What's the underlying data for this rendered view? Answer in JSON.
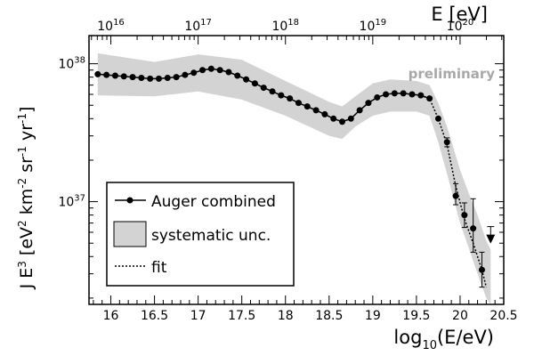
{
  "chart_data": {
    "type": "line",
    "annotation": "preliminary",
    "xlabel_bottom": {
      "base": "log",
      "sub": "10",
      "rest": "(E/eV)"
    },
    "xlabel_top": "E [eV]",
    "ylabel_parts": [
      "J E",
      "3",
      " [eV",
      "2",
      " km",
      "-2",
      " sr",
      "-1",
      " yr",
      "-1",
      "]"
    ],
    "x_range": [
      15.75,
      20.5
    ],
    "y_scale": "log",
    "y_range": [
      1.8e+36,
      1.6e+38
    ],
    "x_ticks": [
      "16",
      "16.5",
      "17",
      "17.5",
      "18",
      "18.5",
      "19",
      "19.5",
      "20",
      "20.5"
    ],
    "x_tick_values": [
      16,
      16.5,
      17,
      17.5,
      18,
      18.5,
      19,
      19.5,
      20,
      20.5
    ],
    "y_ticks": [
      {
        "value": 1e+37,
        "base": "10",
        "exp": "37"
      },
      {
        "value": 1e+38,
        "base": "10",
        "exp": "38"
      }
    ],
    "top_ticks": [
      {
        "log": 16,
        "base": "10",
        "exp": "16"
      },
      {
        "log": 17,
        "base": "10",
        "exp": "17"
      },
      {
        "log": 18,
        "base": "10",
        "exp": "18"
      },
      {
        "log": 19,
        "base": "10",
        "exp": "19"
      },
      {
        "log": 20,
        "base": "10",
        "exp": "20"
      }
    ],
    "legend": {
      "placement": "lower-left",
      "entries": [
        "Auger combined",
        "systematic unc.",
        "fit"
      ]
    },
    "colors": {
      "band": "#d3d3d3",
      "points": "#000000",
      "fit": "#000000"
    },
    "series": [
      {
        "name": "Auger combined",
        "points": [
          {
            "x": 15.85,
            "y": 8.4e+37
          },
          {
            "x": 15.95,
            "y": 8.3e+37
          },
          {
            "x": 16.05,
            "y": 8.2e+37
          },
          {
            "x": 16.15,
            "y": 8.1e+37
          },
          {
            "x": 16.25,
            "y": 8e+37
          },
          {
            "x": 16.35,
            "y": 7.9e+37
          },
          {
            "x": 16.45,
            "y": 7.8e+37
          },
          {
            "x": 16.55,
            "y": 7.8e+37
          },
          {
            "x": 16.65,
            "y": 7.9e+37
          },
          {
            "x": 16.75,
            "y": 8e+37
          },
          {
            "x": 16.85,
            "y": 8.3e+37
          },
          {
            "x": 16.95,
            "y": 8.6e+37
          },
          {
            "x": 17.05,
            "y": 9e+37
          },
          {
            "x": 17.15,
            "y": 9.2e+37
          },
          {
            "x": 17.25,
            "y": 9e+37
          },
          {
            "x": 17.35,
            "y": 8.7e+37
          },
          {
            "x": 17.45,
            "y": 8.2e+37
          },
          {
            "x": 17.55,
            "y": 7.7e+37
          },
          {
            "x": 17.65,
            "y": 7.2e+37
          },
          {
            "x": 17.75,
            "y": 6.7e+37
          },
          {
            "x": 17.85,
            "y": 6.3e+37
          },
          {
            "x": 17.95,
            "y": 5.9e+37
          },
          {
            "x": 18.05,
            "y": 5.6e+37
          },
          {
            "x": 18.15,
            "y": 5.2e+37
          },
          {
            "x": 18.25,
            "y": 4.9e+37
          },
          {
            "x": 18.35,
            "y": 4.6e+37
          },
          {
            "x": 18.45,
            "y": 4.3e+37
          },
          {
            "x": 18.55,
            "y": 4e+37
          },
          {
            "x": 18.65,
            "y": 3.8e+37
          },
          {
            "x": 18.75,
            "y": 4e+37
          },
          {
            "x": 18.85,
            "y": 4.6e+37
          },
          {
            "x": 18.95,
            "y": 5.2e+37
          },
          {
            "x": 19.05,
            "y": 5.7e+37
          },
          {
            "x": 19.15,
            "y": 6e+37
          },
          {
            "x": 19.25,
            "y": 6.1e+37
          },
          {
            "x": 19.35,
            "y": 6.1e+37
          },
          {
            "x": 19.45,
            "y": 6e+37
          },
          {
            "x": 19.55,
            "y": 5.9e+37
          },
          {
            "x": 19.65,
            "y": 5.6e+37
          },
          {
            "x": 19.75,
            "y": 4e+37
          },
          {
            "x": 19.85,
            "y": 2.7e+37,
            "err_lo": 2.5e+37,
            "err_hi": 2.9e+37
          },
          {
            "x": 19.95,
            "y": 1.1e+37,
            "err_lo": 9.5e+36,
            "err_hi": 1.35e+37
          },
          {
            "x": 20.05,
            "y": 8e+36,
            "err_lo": 6.5e+36,
            "err_hi": 9.8e+36
          },
          {
            "x": 20.15,
            "y": 6.4e+36,
            "err_lo": 4.3e+36,
            "err_hi": 1.05e+37
          },
          {
            "x": 20.25,
            "y": 3.2e+36,
            "err_lo": 2.4e+36,
            "err_hi": 4.3e+36
          }
        ],
        "upper_limits": [
          {
            "x": 20.35,
            "y": 5.6e+36
          }
        ]
      }
    ],
    "systematic_band": {
      "name": "systematic unc.",
      "x": [
        15.85,
        16.5,
        17.0,
        17.5,
        18.0,
        18.5,
        18.65,
        18.8,
        19.0,
        19.2,
        19.5,
        19.65,
        19.75,
        19.85,
        20.0,
        20.1,
        20.2,
        20.3,
        20.35
      ],
      "lower": [
        5.9e+37,
        5.8e+37,
        6.3e+37,
        5.5e+37,
        4.2e+37,
        3e+37,
        2.85e+37,
        3.5e+37,
        4.2e+37,
        4.5e+37,
        4.5e+37,
        4.2e+37,
        2.7e+37,
        1.6e+37,
        7e+36,
        4.6e+36,
        3e+36,
        2e+36,
        1.8e+36
      ],
      "upper": [
        1.19e+38,
        1.03e+38,
        1.17e+38,
        1.07e+38,
        7.5e+37,
        5.3e+37,
        4.9e+37,
        5.8e+37,
        7.2e+37,
        7.7e+37,
        7.5e+37,
        7e+37,
        5.2e+37,
        3.5e+37,
        1.7e+37,
        1.15e+37,
        8e+36,
        5.2e+36,
        4.5e+36
      ]
    },
    "fit": {
      "name": "fit",
      "x": [
        19.55,
        19.65,
        19.75,
        19.85,
        19.95,
        20.05,
        20.15,
        20.25,
        20.3
      ],
      "y": [
        5.9e+37,
        5.6e+37,
        4e+37,
        2.6e+37,
        1.3e+37,
        7.5e+36,
        5e+36,
        3.2e+36,
        2.4e+36
      ]
    }
  }
}
